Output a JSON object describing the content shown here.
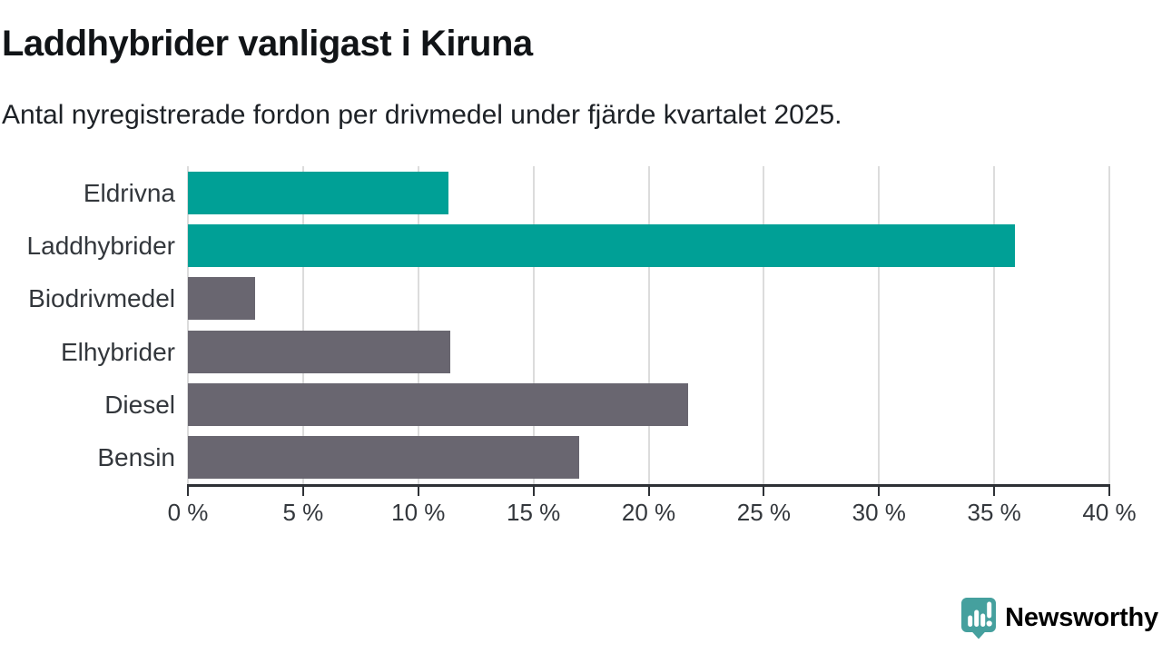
{
  "header": {
    "title": "Laddhybrider vanligast i Kiruna",
    "subtitle": "Antal nyregistrerade fordon per drivmedel under fjärde kvartalet 2025."
  },
  "chart_data": {
    "type": "bar",
    "orientation": "horizontal",
    "title": "Laddhybrider vanligast i Kiruna",
    "subtitle": "Antal nyregistrerade fordon per drivmedel under fjärde kvartalet 2025.",
    "categories": [
      "Eldrivna",
      "Laddhybrider",
      "Biodrivmedel",
      "Elhybrider",
      "Diesel",
      "Bensin"
    ],
    "values": [
      11.3,
      35.9,
      2.9,
      11.4,
      21.7,
      17.0
    ],
    "unit": "%",
    "bar_colors": [
      "#00a096",
      "#00a096",
      "#696670",
      "#696670",
      "#696670",
      "#696670"
    ],
    "xlim": [
      0,
      40
    ],
    "x_tick_labels": [
      "0 %",
      "5 %",
      "10 %",
      "15 %",
      "20 %",
      "25 %",
      "30 %",
      "35 %",
      "40 %"
    ],
    "x_tick_values": [
      0,
      5,
      10,
      15,
      20,
      25,
      30,
      35,
      40
    ],
    "grid": true,
    "legend": false,
    "xlabel": "",
    "ylabel": ""
  },
  "branding": {
    "logo_text": "Newsworthy",
    "logo_icon": "speech-bubble-bar-chart-icon",
    "logo_color": "#3f9e9b"
  },
  "colors": {
    "highlight_teal": "#00a096",
    "neutral_gray": "#696670",
    "gridline": "#dcdcdc",
    "axis": "#2e3136",
    "title_text": "#111417",
    "body_text": "#33373c",
    "background": "#ffffff"
  }
}
